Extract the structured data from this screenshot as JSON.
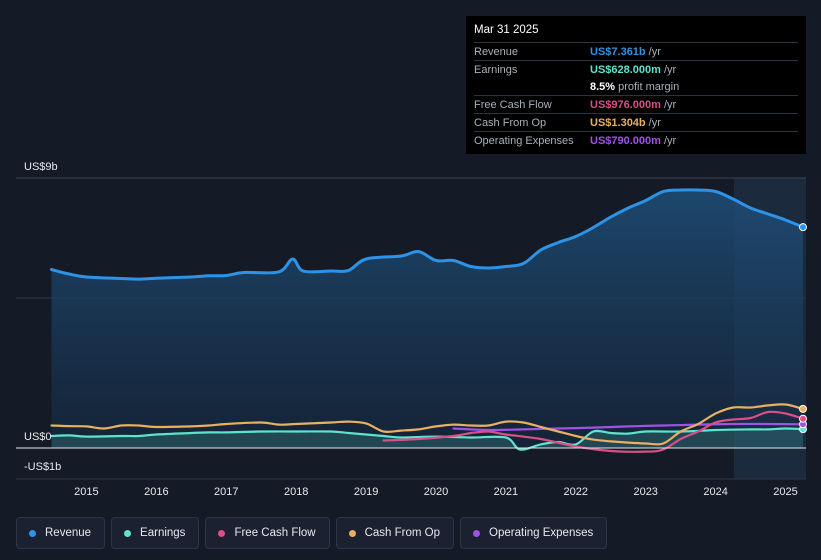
{
  "tooltip": {
    "date": "Mar 31 2025",
    "rows": [
      {
        "label": "Revenue",
        "value": "US$7.361b",
        "unit": "/yr",
        "color": "#2e93e6"
      },
      {
        "label": "Earnings",
        "value": "US$628.000m",
        "unit": "/yr",
        "color": "#5ee3d0"
      },
      {
        "label": "",
        "value": "8.5%",
        "unit": "profit margin",
        "color": "#ffffff"
      },
      {
        "label": "Free Cash Flow",
        "value": "US$976.000m",
        "unit": "/yr",
        "color": "#d94f86"
      },
      {
        "label": "Cash From Op",
        "value": "US$1.304b",
        "unit": "/yr",
        "color": "#e8b060"
      },
      {
        "label": "Operating Expenses",
        "value": "US$790.000m",
        "unit": "/yr",
        "color": "#a052e8"
      }
    ]
  },
  "legend": [
    {
      "label": "Revenue",
      "color": "#2e93e6"
    },
    {
      "label": "Earnings",
      "color": "#5ee3d0"
    },
    {
      "label": "Free Cash Flow",
      "color": "#d94f86"
    },
    {
      "label": "Cash From Op",
      "color": "#e8b060"
    },
    {
      "label": "Operating Expenses",
      "color": "#a052e8"
    }
  ],
  "chart_data": {
    "type": "line",
    "ylabels": {
      "top": "US$9b",
      "zero": "US$0",
      "bottom": "-US$1b"
    },
    "ylim": [
      -1,
      9
    ],
    "xlim": [
      2014.45,
      2025.25
    ],
    "forecast_start": 2024.25,
    "xticks": [
      "2015",
      "2016",
      "2017",
      "2018",
      "2019",
      "2020",
      "2021",
      "2022",
      "2023",
      "2024",
      "2025"
    ],
    "series": [
      {
        "name": "Revenue",
        "color": "#2e93e6",
        "fill": true,
        "points": [
          [
            2014.5,
            5.95
          ],
          [
            2014.75,
            5.8
          ],
          [
            2015.0,
            5.7
          ],
          [
            2015.5,
            5.65
          ],
          [
            2015.75,
            5.63
          ],
          [
            2016.0,
            5.66
          ],
          [
            2016.5,
            5.7
          ],
          [
            2016.75,
            5.74
          ],
          [
            2017.0,
            5.75
          ],
          [
            2017.25,
            5.85
          ],
          [
            2017.75,
            5.87
          ],
          [
            2017.95,
            6.3
          ],
          [
            2018.1,
            5.9
          ],
          [
            2018.5,
            5.9
          ],
          [
            2018.75,
            5.92
          ],
          [
            2019.0,
            6.3
          ],
          [
            2019.5,
            6.4
          ],
          [
            2019.75,
            6.55
          ],
          [
            2020.0,
            6.25
          ],
          [
            2020.25,
            6.25
          ],
          [
            2020.5,
            6.05
          ],
          [
            2020.75,
            6.0
          ],
          [
            2021.0,
            6.05
          ],
          [
            2021.25,
            6.15
          ],
          [
            2021.5,
            6.6
          ],
          [
            2021.75,
            6.85
          ],
          [
            2022.0,
            7.05
          ],
          [
            2022.25,
            7.35
          ],
          [
            2022.5,
            7.7
          ],
          [
            2022.75,
            8.0
          ],
          [
            2023.0,
            8.25
          ],
          [
            2023.25,
            8.55
          ],
          [
            2023.5,
            8.6
          ],
          [
            2023.75,
            8.6
          ],
          [
            2024.0,
            8.55
          ],
          [
            2024.25,
            8.3
          ],
          [
            2024.5,
            8.0
          ],
          [
            2024.75,
            7.8
          ],
          [
            2025.0,
            7.6
          ],
          [
            2025.25,
            7.361
          ]
        ]
      },
      {
        "name": "Earnings",
        "color": "#5ee3d0",
        "fill": true,
        "points": [
          [
            2014.5,
            0.4
          ],
          [
            2014.75,
            0.42
          ],
          [
            2015.0,
            0.38
          ],
          [
            2015.5,
            0.4
          ],
          [
            2015.75,
            0.4
          ],
          [
            2016.0,
            0.45
          ],
          [
            2016.5,
            0.5
          ],
          [
            2016.75,
            0.52
          ],
          [
            2017.0,
            0.52
          ],
          [
            2017.5,
            0.55
          ],
          [
            2018.0,
            0.55
          ],
          [
            2018.5,
            0.55
          ],
          [
            2018.75,
            0.5
          ],
          [
            2019.0,
            0.45
          ],
          [
            2019.25,
            0.4
          ],
          [
            2019.5,
            0.35
          ],
          [
            2020.0,
            0.38
          ],
          [
            2020.5,
            0.35
          ],
          [
            2021.0,
            0.35
          ],
          [
            2021.2,
            -0.05
          ],
          [
            2021.5,
            0.12
          ],
          [
            2021.75,
            0.2
          ],
          [
            2022.0,
            0.12
          ],
          [
            2022.25,
            0.55
          ],
          [
            2022.5,
            0.5
          ],
          [
            2022.75,
            0.48
          ],
          [
            2023.0,
            0.55
          ],
          [
            2023.5,
            0.55
          ],
          [
            2024.0,
            0.6
          ],
          [
            2024.5,
            0.62
          ],
          [
            2024.75,
            0.62
          ],
          [
            2025.0,
            0.65
          ],
          [
            2025.25,
            0.628
          ]
        ]
      },
      {
        "name": "Free Cash Flow",
        "color": "#d94f86",
        "fill": false,
        "points": [
          [
            2019.25,
            0.25
          ],
          [
            2019.75,
            0.3
          ],
          [
            2020.25,
            0.4
          ],
          [
            2020.5,
            0.5
          ],
          [
            2020.75,
            0.55
          ],
          [
            2021.0,
            0.45
          ],
          [
            2021.5,
            0.3
          ],
          [
            2022.0,
            0.05
          ],
          [
            2022.5,
            -0.1
          ],
          [
            2023.0,
            -0.12
          ],
          [
            2023.25,
            -0.05
          ],
          [
            2023.5,
            0.3
          ],
          [
            2023.75,
            0.55
          ],
          [
            2024.0,
            0.85
          ],
          [
            2024.25,
            0.95
          ],
          [
            2024.5,
            1.0
          ],
          [
            2024.75,
            1.2
          ],
          [
            2025.0,
            1.15
          ],
          [
            2025.25,
            0.976
          ]
        ]
      },
      {
        "name": "Cash From Op",
        "color": "#e8b060",
        "fill": false,
        "points": [
          [
            2014.5,
            0.75
          ],
          [
            2014.75,
            0.73
          ],
          [
            2015.0,
            0.72
          ],
          [
            2015.25,
            0.65
          ],
          [
            2015.5,
            0.75
          ],
          [
            2015.75,
            0.75
          ],
          [
            2016.0,
            0.7
          ],
          [
            2016.5,
            0.72
          ],
          [
            2016.75,
            0.75
          ],
          [
            2017.0,
            0.8
          ],
          [
            2017.5,
            0.85
          ],
          [
            2017.75,
            0.78
          ],
          [
            2018.0,
            0.8
          ],
          [
            2018.5,
            0.85
          ],
          [
            2018.75,
            0.88
          ],
          [
            2019.0,
            0.82
          ],
          [
            2019.25,
            0.55
          ],
          [
            2019.5,
            0.58
          ],
          [
            2019.75,
            0.62
          ],
          [
            2020.0,
            0.72
          ],
          [
            2020.25,
            0.78
          ],
          [
            2020.5,
            0.75
          ],
          [
            2020.75,
            0.75
          ],
          [
            2021.0,
            0.88
          ],
          [
            2021.25,
            0.85
          ],
          [
            2021.5,
            0.7
          ],
          [
            2021.75,
            0.55
          ],
          [
            2022.0,
            0.4
          ],
          [
            2022.25,
            0.28
          ],
          [
            2022.5,
            0.22
          ],
          [
            2022.75,
            0.18
          ],
          [
            2023.0,
            0.15
          ],
          [
            2023.25,
            0.15
          ],
          [
            2023.5,
            0.55
          ],
          [
            2023.75,
            0.8
          ],
          [
            2024.0,
            1.15
          ],
          [
            2024.25,
            1.35
          ],
          [
            2024.5,
            1.35
          ],
          [
            2024.75,
            1.42
          ],
          [
            2025.0,
            1.45
          ],
          [
            2025.25,
            1.304
          ]
        ]
      },
      {
        "name": "Operating Expenses",
        "color": "#a052e8",
        "fill": false,
        "points": [
          [
            2020.25,
            0.65
          ],
          [
            2020.75,
            0.6
          ],
          [
            2021.25,
            0.62
          ],
          [
            2021.75,
            0.65
          ],
          [
            2022.25,
            0.68
          ],
          [
            2022.75,
            0.72
          ],
          [
            2023.25,
            0.75
          ],
          [
            2023.75,
            0.78
          ],
          [
            2024.25,
            0.8
          ],
          [
            2024.75,
            0.8
          ],
          [
            2025.25,
            0.79
          ]
        ]
      }
    ]
  }
}
